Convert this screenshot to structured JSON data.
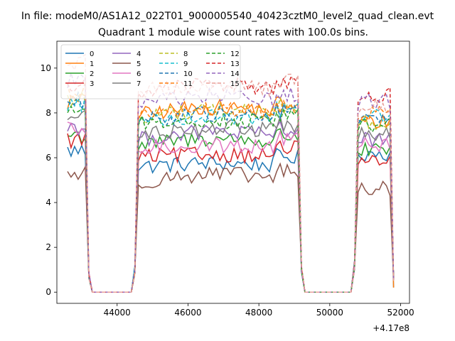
{
  "figure": {
    "suptitle": "In file: modeM0/AS1A12_022T01_9000005540_40423cztM0_level2_quad_clean.evt",
    "offset_text": "+4.17e8"
  },
  "chart_data": {
    "type": "line",
    "title": "Quadrant 1 module wise count rates with 100.0s bins.",
    "xlabel": "",
    "ylabel": "",
    "x_offset": 417000000,
    "xlim": [
      42300,
      52250
    ],
    "ylim": [
      -0.5,
      11.2
    ],
    "x_ticks": [
      44000,
      46000,
      48000,
      50000,
      52000
    ],
    "y_ticks": [
      0,
      2,
      4,
      6,
      8,
      10
    ],
    "x_tick_labels": [
      "44000",
      "46000",
      "48000",
      "50000",
      "52000"
    ],
    "y_tick_labels": [
      "0",
      "2",
      "4",
      "6",
      "8",
      "10"
    ],
    "grid": false,
    "legend_position": "upper-left",
    "legend_columns": 4,
    "segments": [
      {
        "start": 42600,
        "end": 43200
      },
      {
        "gap_start": 43200,
        "gap_end": 44500
      },
      {
        "start": 44500,
        "end": 49200
      },
      {
        "gap_start": 49200,
        "gap_end": 50600
      },
      {
        "start": 50600,
        "end": 51800
      }
    ],
    "series": [
      {
        "name": "0",
        "color": "#1f77b4",
        "dashed": false,
        "levels": [
          6.3,
          5.6,
          6.2
        ]
      },
      {
        "name": "1",
        "color": "#ff7f0e",
        "dashed": false,
        "levels": [
          8.5,
          7.9,
          7.6
        ]
      },
      {
        "name": "2",
        "color": "#2ca02c",
        "dashed": false,
        "levels": [
          7.0,
          6.5,
          6.3
        ]
      },
      {
        "name": "3",
        "color": "#d62728",
        "dashed": false,
        "levels": [
          6.8,
          6.0,
          5.8
        ]
      },
      {
        "name": "4",
        "color": "#9467bd",
        "dashed": false,
        "levels": [
          7.4,
          6.8,
          6.8
        ]
      },
      {
        "name": "5",
        "color": "#8c564b",
        "dashed": false,
        "levels": [
          5.3,
          4.9,
          4.6
        ]
      },
      {
        "name": "6",
        "color": "#e377c2",
        "dashed": false,
        "levels": [
          7.2,
          6.4,
          6.6
        ]
      },
      {
        "name": "7",
        "color": "#7f7f7f",
        "dashed": false,
        "levels": [
          7.8,
          7.0,
          7.0
        ]
      },
      {
        "name": "8",
        "color": "#bcbd22",
        "dashed": true,
        "levels": [
          8.6,
          7.8,
          7.6
        ]
      },
      {
        "name": "9",
        "color": "#17becf",
        "dashed": true,
        "levels": [
          8.4,
          7.7,
          7.9
        ]
      },
      {
        "name": "10",
        "color": "#1f77b4",
        "dashed": true,
        "levels": [
          8.5,
          7.6,
          7.7
        ]
      },
      {
        "name": "11",
        "color": "#ff7f0e",
        "dashed": true,
        "levels": [
          9.0,
          7.8,
          8.0
        ]
      },
      {
        "name": "12",
        "color": "#2ca02c",
        "dashed": true,
        "levels": [
          8.2,
          7.5,
          7.5
        ]
      },
      {
        "name": "13",
        "color": "#d62728",
        "dashed": true,
        "levels": [
          9.2,
          8.9,
          8.8
        ]
      },
      {
        "name": "14",
        "color": "#9467bd",
        "dashed": true,
        "levels": [
          9.5,
          8.4,
          8.5
        ]
      },
      {
        "name": "15",
        "color": "#e8a09a",
        "dashed": true,
        "levels": [
          10.2,
          9.0,
          8.3
        ]
      }
    ]
  }
}
